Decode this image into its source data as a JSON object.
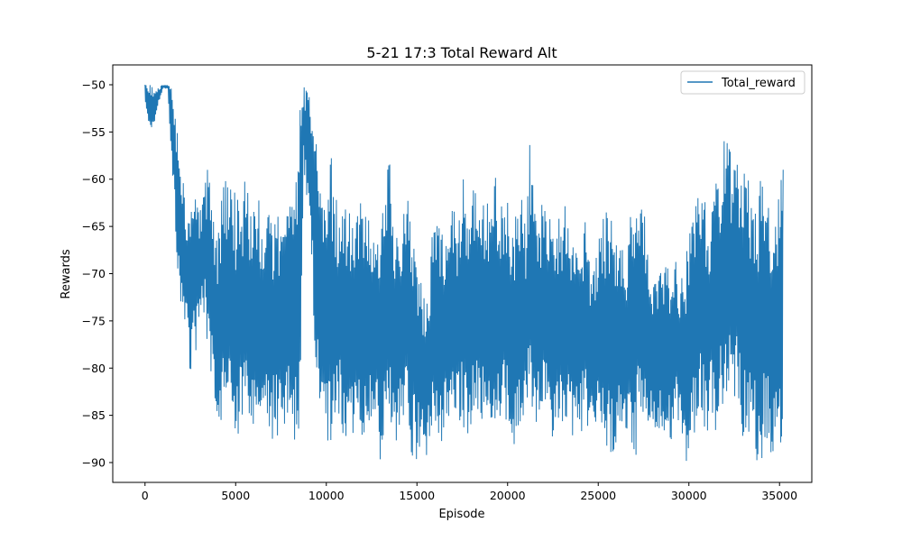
{
  "chart_data": {
    "type": "line",
    "title": "5-21 17:3  Total Reward Alt",
    "xlabel": "Episode",
    "ylabel": "Rewards",
    "xlim": [
      -1780,
      36780
    ],
    "ylim": [
      -92.1,
      -47.9
    ],
    "xticks": [
      0,
      5000,
      10000,
      15000,
      20000,
      25000,
      30000,
      35000
    ],
    "yticks": [
      -50,
      -55,
      -60,
      -65,
      -70,
      -75,
      -80,
      -85,
      -90
    ],
    "grid": false,
    "legend_position": "top-right",
    "colors": {
      "series": "#1f77b4",
      "axes": "#000000"
    },
    "series": [
      {
        "name": "Total_reward",
        "summary": "noisy per-episode reward, plotted as band envelope (low/high) sampled every 250 episodes",
        "x": [
          0,
          250,
          500,
          750,
          1000,
          1250,
          1500,
          1750,
          2000,
          2250,
          2500,
          2750,
          3000,
          3250,
          3500,
          3750,
          4000,
          4250,
          4500,
          4750,
          5000,
          5250,
          5500,
          5750,
          6000,
          6250,
          6500,
          6750,
          7000,
          7250,
          7500,
          7750,
          8000,
          8250,
          8500,
          8750,
          9000,
          9250,
          9500,
          9750,
          10000,
          10250,
          10500,
          10750,
          11000,
          11250,
          11500,
          11750,
          12000,
          12250,
          12500,
          12750,
          13000,
          13250,
          13500,
          13750,
          14000,
          14250,
          14500,
          14750,
          15000,
          15250,
          15500,
          15750,
          16000,
          16250,
          16500,
          16750,
          17000,
          17250,
          17500,
          17750,
          18000,
          18250,
          18500,
          18750,
          19000,
          19250,
          19500,
          19750,
          20000,
          20250,
          20500,
          20750,
          21000,
          21250,
          21500,
          21750,
          22000,
          22250,
          22500,
          22750,
          23000,
          23250,
          23500,
          23750,
          24000,
          24250,
          24500,
          24750,
          25000,
          25250,
          25500,
          25750,
          26000,
          26250,
          26500,
          26750,
          27000,
          27250,
          27500,
          27750,
          28000,
          28250,
          28500,
          28750,
          29000,
          29250,
          29500,
          29750,
          30000,
          30250,
          30500,
          30750,
          31000,
          31250,
          31500,
          31750,
          32000,
          32250,
          32500,
          32750,
          33000,
          33250,
          33500,
          33750,
          34000,
          34250,
          34500,
          34750,
          35000,
          35200
        ],
        "low": [
          -52.3,
          -54.5,
          -54.5,
          -52.3,
          -50.3,
          -50.5,
          -59,
          -67.8,
          -76.8,
          -74.5,
          -81.2,
          -79,
          -76.8,
          -74.5,
          -79,
          -83.4,
          -85.6,
          -85.6,
          -85.6,
          -83.4,
          -90,
          -85.6,
          -85.6,
          -85.6,
          -87.8,
          -87.8,
          -85.6,
          -85.6,
          -87.8,
          -87.8,
          -85.6,
          -87.8,
          -85.6,
          -87.8,
          -90,
          -59,
          -63.4,
          -72.3,
          -83.4,
          -85.6,
          -87.8,
          -90,
          -87.8,
          -85.6,
          -90,
          -87.8,
          -87.8,
          -85.6,
          -87.8,
          -85.6,
          -85.6,
          -87.8,
          -90,
          -87.8,
          -85.6,
          -87.8,
          -87.8,
          -85.6,
          -87.8,
          -90,
          -90,
          -90,
          -90,
          -87.8,
          -87.8,
          -87.8,
          -87.8,
          -85.6,
          -87.8,
          -87.8,
          -85.6,
          -87.8,
          -87.8,
          -87.8,
          -85.6,
          -87.8,
          -87.8,
          -87.8,
          -85.6,
          -85.6,
          -85.6,
          -90,
          -90,
          -87.8,
          -85.6,
          -83.4,
          -85.6,
          -87.8,
          -85.6,
          -85.6,
          -87.8,
          -85.6,
          -87.8,
          -85.6,
          -87.8,
          -87.8,
          -87.8,
          -85.6,
          -87.8,
          -87.8,
          -87.8,
          -90,
          -90,
          -90,
          -90,
          -87.8,
          -87.8,
          -87.8,
          -90,
          -87.8,
          -87.8,
          -85.6,
          -87.8,
          -87.8,
          -87.8,
          -87.8,
          -87.8,
          -85.6,
          -87.8,
          -90,
          -90,
          -87.8,
          -85.6,
          -85.6,
          -87.8,
          -85.6,
          -87.8,
          -85.6,
          -83.4,
          -81.2,
          -83.4,
          -85.6,
          -87.8,
          -87.8,
          -87.8,
          -90,
          -90,
          -87.8,
          -90,
          -90,
          -90,
          -90
        ],
        "high": [
          -50,
          -50,
          -50,
          -50,
          -50,
          -50,
          -50,
          -54.5,
          -56.7,
          -63.4,
          -61.2,
          -56.7,
          -63.4,
          -59,
          -59,
          -63.4,
          -65.6,
          -61.2,
          -59,
          -61.2,
          -61.2,
          -63.4,
          -59,
          -61.2,
          -63.4,
          -61.2,
          -65.6,
          -61.2,
          -63.4,
          -63.4,
          -63.4,
          -61.2,
          -61.2,
          -63.4,
          -50,
          -50,
          -50,
          -50,
          -56.7,
          -61.2,
          -63.4,
          -56.7,
          -61.2,
          -63.4,
          -61.2,
          -63.4,
          -63.4,
          -61.2,
          -63.4,
          -61.2,
          -65.6,
          -63.4,
          -63.4,
          -61.2,
          -56.7,
          -63.4,
          -63.4,
          -63.4,
          -59,
          -63.4,
          -68,
          -70.1,
          -74.5,
          -68,
          -61.2,
          -63.4,
          -65.6,
          -63.4,
          -61.2,
          -63.4,
          -59,
          -63.4,
          -61.2,
          -56.7,
          -63.4,
          -61.2,
          -63.4,
          -59,
          -61.2,
          -63.4,
          -61.2,
          -63.4,
          -63.4,
          -59,
          -65.6,
          -54.5,
          -63.4,
          -61.2,
          -63.4,
          -61.2,
          -63.4,
          -63.4,
          -65.6,
          -61.2,
          -65.6,
          -63.4,
          -68,
          -63.4,
          -68,
          -68,
          -65.6,
          -61.2,
          -63.4,
          -63.4,
          -65.6,
          -65.6,
          -68,
          -63.4,
          -61.2,
          -59,
          -63.4,
          -65.6,
          -70.1,
          -70.1,
          -68,
          -68,
          -70.1,
          -68,
          -70.1,
          -70.1,
          -65.6,
          -63.4,
          -59,
          -61.2,
          -63.4,
          -63.4,
          -59,
          -59,
          -52.3,
          -56.7,
          -59,
          -56.7,
          -56.7,
          -59,
          -61.2,
          -63.4,
          -59,
          -61.2,
          -63.4,
          -65.6,
          -59,
          -59
        ]
      }
    ]
  }
}
